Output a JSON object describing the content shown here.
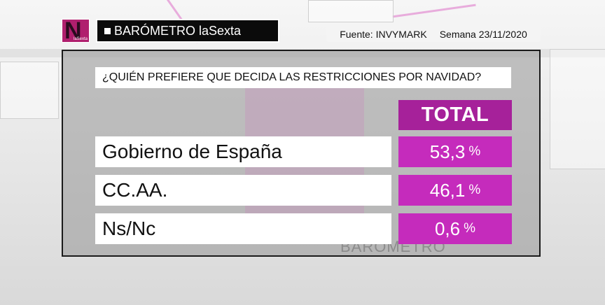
{
  "header": {
    "logo_letter": "N",
    "logo_small": "laSexta",
    "title": "BARÓMETRO laSexta",
    "source": "Fuente: INVYMARK",
    "week": "Semana 23/11/2020"
  },
  "colors": {
    "total_header": "#a6219a",
    "value_cell": "#c52bbc",
    "logo": "#b01f6e"
  },
  "chart_data": {
    "type": "table",
    "title": "¿QUIÉN PREFIERE QUE DECIDA LAS RESTRICCIONES POR NAVIDAD?",
    "column_header": "TOTAL",
    "unit": "%",
    "categories": [
      "Gobierno de España",
      "CC.AA.",
      "Ns/Nc"
    ],
    "values": [
      53.3,
      46.1,
      0.6
    ],
    "value_labels": [
      "53,3",
      "46,1",
      "0,6"
    ]
  },
  "watermark": "BARÓMETRO"
}
